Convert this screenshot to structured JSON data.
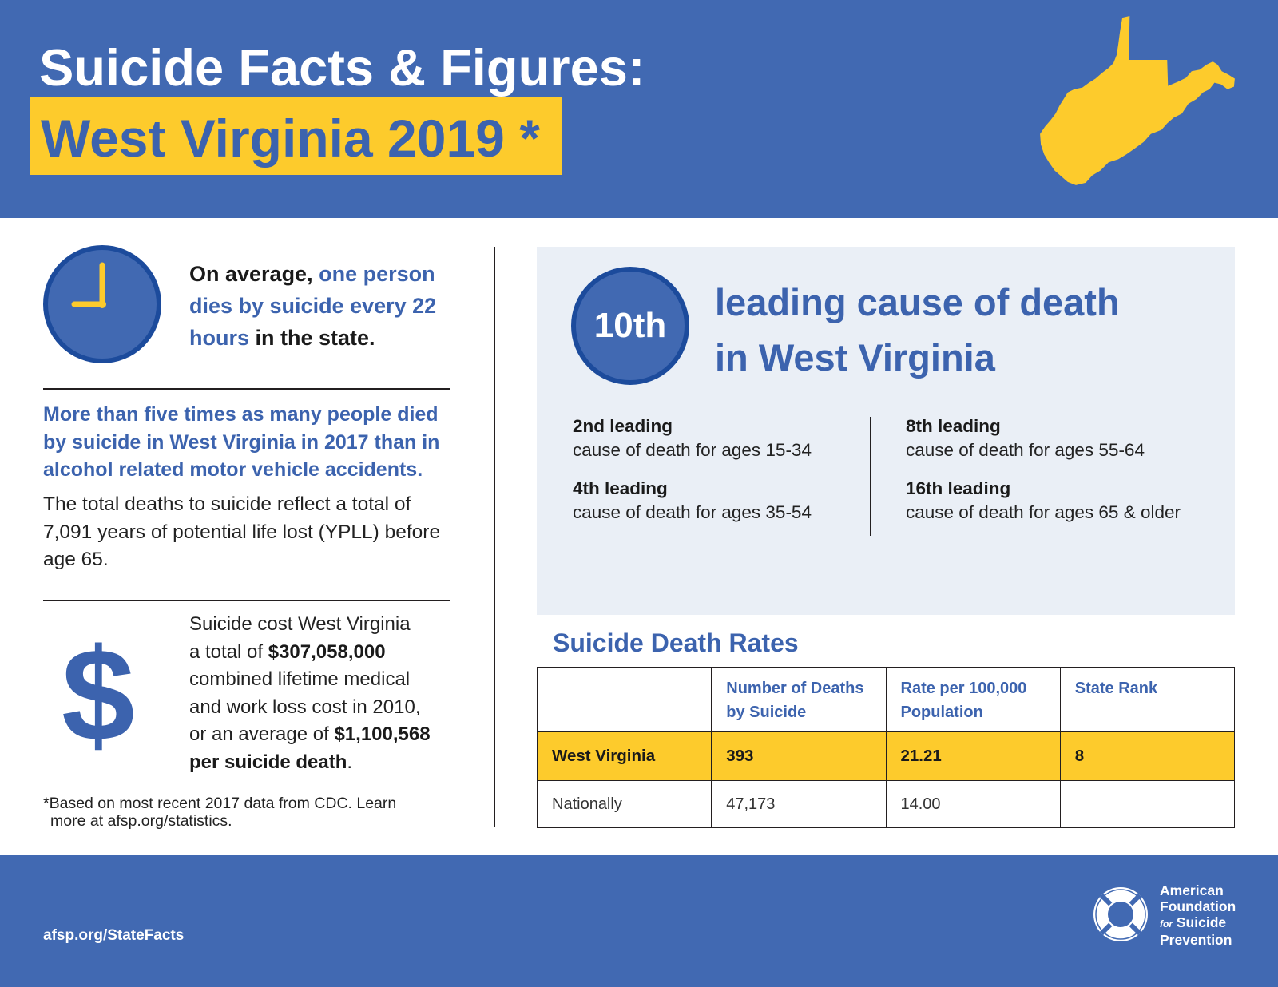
{
  "header": {
    "title": "Suicide Facts & Figures:",
    "subtitle": "West Virginia 2019 *"
  },
  "colors": {
    "brand_blue": "#4169B2",
    "text_blue": "#3C63AE",
    "ring_blue": "#1C4B9C",
    "accent_yellow": "#FDCB2C",
    "panel_bg": "#EAEFF6"
  },
  "icons": {
    "state_map": "west-virginia-map-icon",
    "clock": "clock-icon",
    "dollar": "dollar-icon",
    "dollar_glyph": "$",
    "logo": "lifebuoy-logo-icon"
  },
  "clock_fact": {
    "lead": "On average, ",
    "highlight": "one person dies by suicide every 22 hours",
    "tail": " in the state."
  },
  "comparison": {
    "highlight": "More than five times as many people died by suicide in West Virginia in 2017 than in alcohol related motor vehicle accidents.",
    "detail": "The total deaths to suicide reflect a total of 7,091 years of potential life lost (YPLL) before age 65."
  },
  "cost": {
    "line1": "Suicide cost West Virginia",
    "line2_prefix": "a total of ",
    "total_cost": "$307,058,000",
    "line3": "combined lifetime medical",
    "line4": "and work loss cost in 2010,",
    "line5_prefix": "or an average of ",
    "average_cost": "$1,100,568",
    "line6_bold": "per suicide death",
    "line6_tail": "."
  },
  "footnote": {
    "line1": "*Based on most recent 2017 data from CDC. Learn",
    "line2": "more at afsp.org/statistics."
  },
  "leading_cause": {
    "rank": "10th",
    "heading_line1": "leading cause of death",
    "heading_line2": "in West Virginia",
    "by_age": [
      {
        "rank": "2nd leading",
        "desc": "cause of death for ages 15-34"
      },
      {
        "rank": "4th leading",
        "desc": "cause of death for ages 35-54"
      },
      {
        "rank": "8th leading",
        "desc": "cause of death for ages 55-64"
      },
      {
        "rank": "16th leading",
        "desc": "cause of death for ages 65 & older"
      }
    ]
  },
  "rates_table": {
    "title": "Suicide Death Rates",
    "headers": {
      "deaths": "Number of Deaths by Suicide",
      "rate": "Rate per 100,000 Population",
      "rank": "State Rank"
    },
    "rows": [
      {
        "label": "West Virginia",
        "deaths": "393",
        "rate": "21.21",
        "rank": "8"
      },
      {
        "label": "Nationally",
        "deaths": "47,173",
        "rate": "14.00"
      }
    ]
  },
  "footer": {
    "url": "afsp.org/StateFacts",
    "logo": {
      "line1": "American",
      "line2": "Foundation",
      "for": "for",
      "line3": "Suicide",
      "line4": "Prevention"
    }
  }
}
